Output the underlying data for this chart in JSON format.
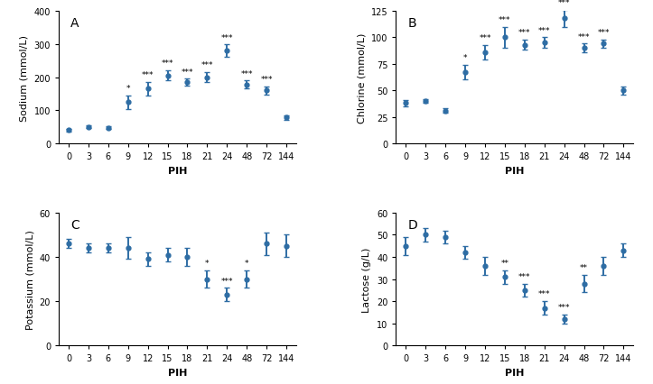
{
  "x_labels": [
    "0",
    "3",
    "6",
    "9",
    "12",
    "15",
    "18",
    "21",
    "24",
    "48",
    "72",
    "144"
  ],
  "x_indices": [
    0,
    1,
    2,
    3,
    4,
    5,
    6,
    7,
    8,
    9,
    10,
    11
  ],
  "sodium_y": [
    40,
    50,
    47,
    125,
    165,
    205,
    185,
    200,
    280,
    178,
    160,
    78
  ],
  "sodium_err": [
    4,
    4,
    4,
    20,
    20,
    15,
    10,
    15,
    18,
    12,
    12,
    6
  ],
  "sodium_sig": [
    "",
    "",
    "",
    "*",
    "***",
    "***",
    "***",
    "***",
    "***",
    "***",
    "***",
    ""
  ],
  "sodium_ylim": [
    0,
    400
  ],
  "sodium_yticks": [
    0,
    100,
    200,
    300,
    400
  ],
  "sodium_ylabel": "Sodium (mmol/L)",
  "chlorine_y": [
    38,
    40,
    31,
    67,
    86,
    100,
    93,
    95,
    118,
    90,
    94,
    50
  ],
  "chlorine_err": [
    3,
    2,
    2,
    7,
    7,
    10,
    5,
    5,
    8,
    4,
    4,
    4
  ],
  "chlorine_sig": [
    "",
    "",
    "",
    "*",
    "***",
    "***",
    "***",
    "***",
    "***",
    "***",
    "***",
    ""
  ],
  "chlorine_ylim": [
    0,
    125
  ],
  "chlorine_yticks": [
    0,
    25,
    50,
    75,
    100,
    125
  ],
  "chlorine_ylabel": "Chlorine (mmol/L)",
  "potassium_y": [
    46,
    44,
    44,
    44,
    39,
    41,
    40,
    30,
    23,
    30,
    46,
    45
  ],
  "potassium_err": [
    2,
    2,
    2,
    5,
    3,
    3,
    4,
    4,
    3,
    4,
    5,
    5
  ],
  "potassium_sig": [
    "",
    "",
    "",
    "",
    "",
    "",
    "",
    "*",
    "***",
    "*",
    "",
    ""
  ],
  "potassium_ylim": [
    0,
    60
  ],
  "potassium_yticks": [
    0,
    20,
    40,
    60
  ],
  "potassium_ylabel": "Potassium (mmol/L)",
  "lactose_y": [
    45,
    50,
    49,
    42,
    36,
    31,
    25,
    17,
    12,
    28,
    36,
    43
  ],
  "lactose_err": [
    4,
    3,
    3,
    3,
    4,
    3,
    3,
    3,
    2,
    4,
    4,
    3
  ],
  "lactose_sig": [
    "",
    "",
    "",
    "",
    "",
    "**",
    "***",
    "***",
    "***",
    "**",
    "",
    ""
  ],
  "lactose_ylim": [
    0,
    60
  ],
  "lactose_yticks": [
    0,
    10,
    20,
    30,
    40,
    50,
    60
  ],
  "lactose_ylabel": "Lactose (g/L)",
  "line_color": "#2E6DA4",
  "marker_style": "o",
  "marker_size": 3.5,
  "line_width": 1.4,
  "xlabel": "PIH",
  "panel_labels": [
    "A",
    "B",
    "C",
    "D"
  ],
  "sig_fontsize": 6.5,
  "label_fontsize": 8,
  "tick_fontsize": 7
}
